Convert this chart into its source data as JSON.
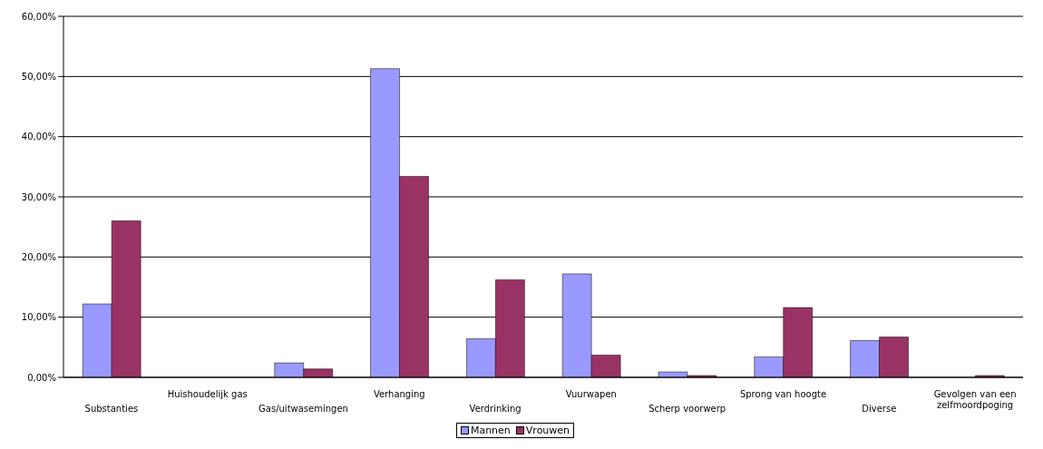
{
  "chart_data": {
    "type": "bar",
    "categories": [
      "Substanties",
      "Huishoudelijk gas",
      "Gas/uitwasemingen",
      "Verhanging",
      "Verdrinking",
      "Vuurwapen",
      "Scherp voorwerp",
      "Sprong van hoogte",
      "Diverse",
      "Gevolgen van een zelfmoordpoging"
    ],
    "series": [
      {
        "name": "Mannen",
        "color": "#9999ff",
        "values": [
          12.2,
          0,
          2.4,
          51.3,
          6.4,
          17.2,
          0.9,
          3.4,
          6.1,
          0
        ]
      },
      {
        "name": "Vrouwen",
        "color": "#993366",
        "values": [
          26.0,
          0,
          1.4,
          33.4,
          16.2,
          3.7,
          0.3,
          11.6,
          6.7,
          0.3
        ]
      }
    ],
    "ylim": [
      0,
      60
    ],
    "yticks": [
      {
        "value": 0,
        "label": "0,00%"
      },
      {
        "value": 10,
        "label": "10,00%"
      },
      {
        "value": 20,
        "label": "20,00%"
      },
      {
        "value": 30,
        "label": "30,00%"
      },
      {
        "value": 40,
        "label": "40,00%"
      },
      {
        "value": 50,
        "label": "50,00%"
      },
      {
        "value": 60,
        "label": "60,00%"
      }
    ],
    "grid": "y",
    "legend": "bottom"
  }
}
